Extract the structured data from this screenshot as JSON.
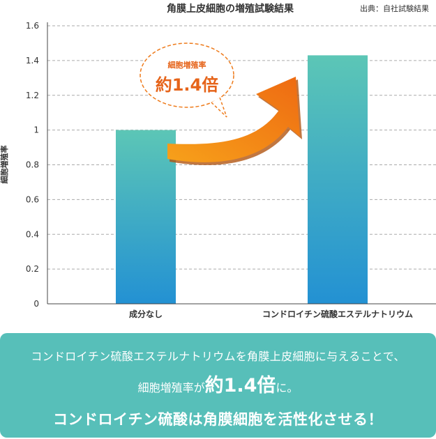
{
  "chart_data": {
    "type": "bar",
    "title": "角膜上皮細胞の増殖試験結果",
    "source": "出典：自社試験結果",
    "ylabel": "細胞増殖率",
    "xlabel": "",
    "categories": [
      "成分なし",
      "コンドロイチン硫酸エステルナトリウム"
    ],
    "values": [
      1.0,
      1.43
    ],
    "ylim": [
      0,
      1.6
    ],
    "yticks": [
      "0",
      "0.2",
      "0.4",
      "0.6",
      "0.8",
      "1",
      "1.2",
      "1.4",
      "1.6"
    ],
    "grid": true,
    "annotation": {
      "label": "細胞増殖率",
      "value": "約1.4倍"
    },
    "colors": {
      "bar_top": "#5cc6b6",
      "bar_bottom": "#2391d3",
      "arrow_light": "#f7a11a",
      "arrow_dark": "#ee6a12",
      "annotation_text": "#e6641a"
    }
  },
  "banner": {
    "line1": "コンドロイチン硫酸エステルナトリウムを角膜上皮細胞に与えることで、",
    "line2_pre": "細胞増殖率が",
    "line2_big": "約1.4倍",
    "line2_post": "に。",
    "line3": "コンドロイチン硫酸は角膜細胞を活性化させる！",
    "color": "#57bfb9"
  }
}
